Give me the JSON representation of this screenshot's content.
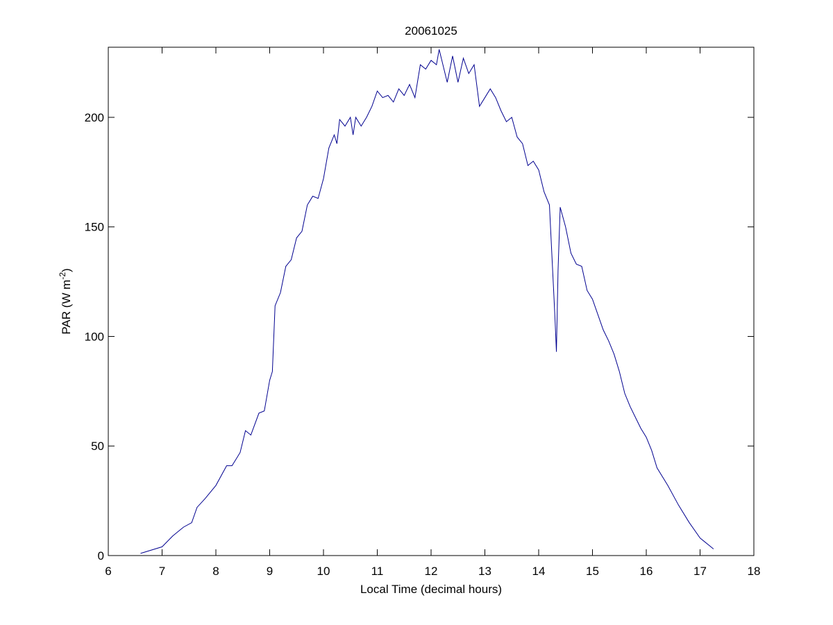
{
  "chart_data": {
    "type": "line",
    "title": "20061025",
    "x_label": "Local Time (decimal hours)",
    "y_label": {
      "text": "PAR (W m",
      "superscript": "-2",
      "suffix": ")"
    },
    "xlim": [
      6,
      18
    ],
    "xticks": [
      6,
      7,
      8,
      9,
      10,
      11,
      12,
      13,
      14,
      15,
      16,
      17,
      18
    ],
    "ylim": [
      0,
      232
    ],
    "yticks": [
      0,
      50,
      100,
      150,
      200
    ],
    "series": [
      {
        "color": "#00008f",
        "x": [
          6.6,
          7.0,
          7.2,
          7.4,
          7.55,
          7.65,
          7.8,
          8.0,
          8.2,
          8.3,
          8.45,
          8.55,
          8.65,
          8.8,
          8.9,
          9.0,
          9.05,
          9.1,
          9.2,
          9.3,
          9.4,
          9.5,
          9.6,
          9.7,
          9.8,
          9.9,
          10.0,
          10.1,
          10.2,
          10.25,
          10.3,
          10.4,
          10.5,
          10.55,
          10.6,
          10.7,
          10.8,
          10.9,
          11.0,
          11.1,
          11.2,
          11.3,
          11.4,
          11.5,
          11.6,
          11.7,
          11.8,
          11.9,
          12.0,
          12.1,
          12.15,
          12.3,
          12.4,
          12.5,
          12.6,
          12.7,
          12.8,
          12.9,
          13.0,
          13.1,
          13.2,
          13.3,
          13.4,
          13.5,
          13.6,
          13.7,
          13.8,
          13.9,
          14.0,
          14.1,
          14.2,
          14.3,
          14.33,
          14.36,
          14.4,
          14.5,
          14.6,
          14.7,
          14.8,
          14.9,
          15.0,
          15.1,
          15.2,
          15.3,
          15.4,
          15.5,
          15.6,
          15.7,
          15.8,
          15.9,
          16.0,
          16.1,
          16.2,
          16.4,
          16.6,
          16.8,
          17.0,
          17.1,
          17.25
        ],
        "values": [
          1,
          4,
          9,
          13,
          15,
          22,
          26,
          32,
          41,
          41,
          47,
          57,
          55,
          65,
          66,
          80,
          84,
          114,
          120,
          132,
          135,
          145,
          148,
          160,
          164,
          163,
          172,
          186,
          192,
          188,
          199,
          196,
          200,
          192,
          200,
          196,
          200,
          205,
          212,
          209,
          210,
          207,
          213,
          210,
          215,
          209,
          224,
          222,
          226,
          224,
          231,
          216,
          228,
          216,
          227,
          220,
          224,
          205,
          209,
          213,
          209,
          203,
          198,
          200,
          191,
          188,
          178,
          180,
          176,
          166,
          160,
          110,
          93,
          130,
          159,
          150,
          138,
          133,
          132,
          121,
          117,
          110,
          103,
          98,
          92,
          84,
          74,
          68,
          63,
          58,
          54,
          48,
          40,
          32,
          23,
          15,
          8,
          6,
          3
        ]
      }
    ]
  }
}
